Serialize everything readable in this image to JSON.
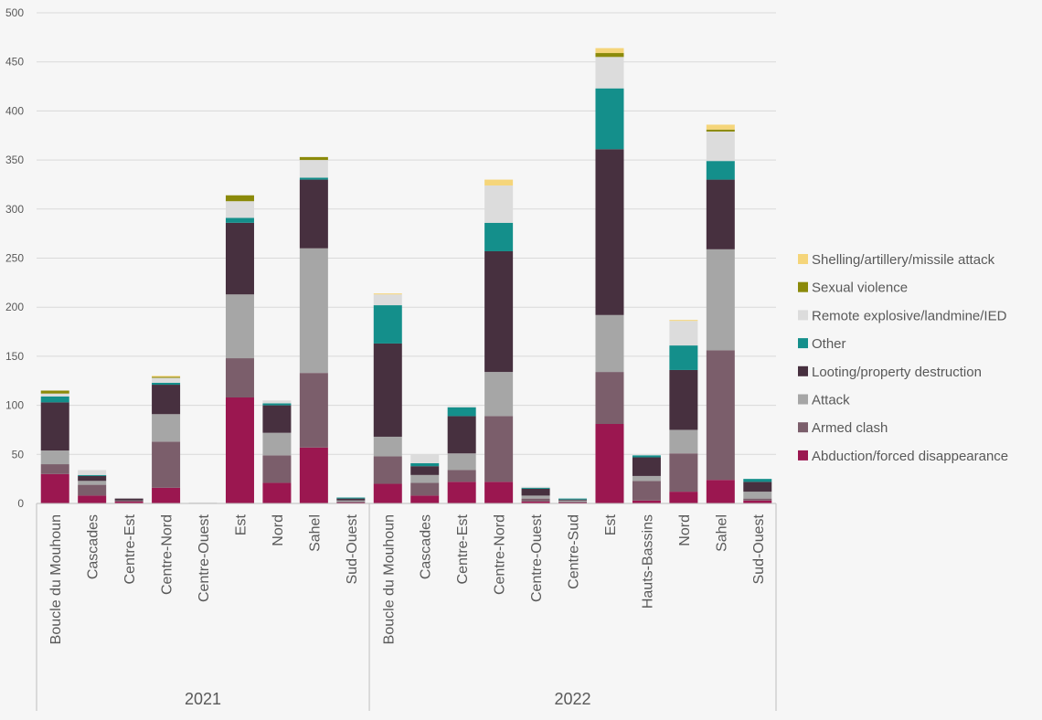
{
  "chart_data": {
    "type": "bar",
    "stacked": true,
    "title": "",
    "xlabel": "",
    "ylabel": "",
    "ylim": [
      0,
      500
    ],
    "yticks": [
      0,
      50,
      100,
      150,
      200,
      250,
      300,
      350,
      400,
      450,
      500
    ],
    "grid": true,
    "legend_position": "right",
    "groups": [
      {
        "label": "2021",
        "categories": [
          "Boucle du Mouhoun",
          "Cascades",
          "Centre-Est",
          "Centre-Nord",
          "Centre-Ouest",
          "Est",
          "Nord",
          "Sahel",
          "Sud-Ouest"
        ]
      },
      {
        "label": "2022",
        "categories": [
          "Boucle du Mouhoun",
          "Cascades",
          "Centre-Est",
          "Centre-Nord",
          "Centre-Ouest",
          "Centre-Sud",
          "Est",
          "Hauts-Bassins",
          "Nord",
          "Sahel",
          "Sud-Ouest"
        ]
      }
    ],
    "series": [
      {
        "name": "Abduction/forced disappearance",
        "color": "#9b1750",
        "values": [
          30,
          8,
          2,
          16,
          0,
          108,
          21,
          57,
          1,
          20,
          8,
          22,
          22,
          2,
          1,
          81,
          3,
          12,
          24,
          3
        ]
      },
      {
        "name": "Armed clash",
        "color": "#7b5e6b",
        "values": [
          10,
          11,
          1,
          47,
          0,
          40,
          28,
          76,
          1,
          28,
          13,
          12,
          67,
          3,
          1,
          53,
          20,
          39,
          132,
          2
        ]
      },
      {
        "name": "Attack",
        "color": "#a6a6a6",
        "values": [
          14,
          4,
          0,
          28,
          0,
          65,
          23,
          127,
          1,
          20,
          8,
          17,
          45,
          3,
          1,
          58,
          5,
          24,
          103,
          7
        ]
      },
      {
        "name": "Looting/property destruction",
        "color": "#47303f",
        "values": [
          49,
          5,
          2,
          30,
          0,
          73,
          28,
          70,
          2,
          95,
          9,
          38,
          123,
          7,
          1,
          169,
          19,
          61,
          71,
          10
        ]
      },
      {
        "name": "Other",
        "color": "#148f8b",
        "values": [
          6,
          1,
          0,
          2,
          0,
          5,
          2,
          2,
          1,
          39,
          3,
          9,
          29,
          1,
          1,
          62,
          2,
          25,
          19,
          3
        ]
      },
      {
        "name": "Remote explosive/landmine/IED",
        "color": "#dcdcdc",
        "values": [
          3,
          5,
          0,
          5,
          1,
          17,
          3,
          18,
          0,
          11,
          9,
          1,
          38,
          1,
          0,
          32,
          0,
          25,
          30,
          0
        ]
      },
      {
        "name": "Sexual violence",
        "color": "#8b8a0a",
        "values": [
          3,
          0,
          0,
          1,
          0,
          6,
          0,
          3,
          0,
          0,
          0,
          0,
          0,
          0,
          0,
          4,
          0,
          0,
          2,
          0
        ]
      },
      {
        "name": "Shelling/artillery/missile attack",
        "color": "#f5d57a",
        "values": [
          0,
          0,
          0,
          1,
          0,
          0,
          0,
          0,
          0,
          1,
          0,
          0,
          6,
          0,
          0,
          5,
          0,
          1,
          5,
          0
        ]
      }
    ]
  }
}
